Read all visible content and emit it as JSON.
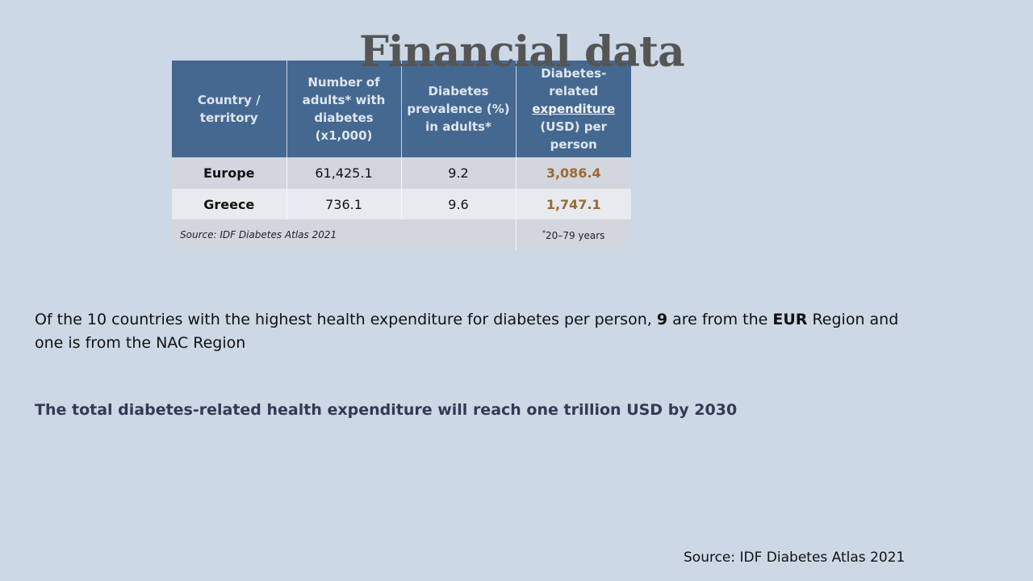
{
  "title": "Financial data",
  "table": {
    "headers": [
      "Country / territory",
      "Number of adults* with diabetes (x1,000)",
      "Diabetes prevalence (%) in adults*",
      {
        "before": "Diabetes-related",
        "underline": "expenditure",
        "after": "(USD) per person"
      }
    ],
    "rows": [
      {
        "country": "Europe",
        "adults": "61,425.1",
        "prevalence": "9.2",
        "expenditure": "3,086.4"
      },
      {
        "country": "Greece",
        "adults": "736.1",
        "prevalence": "9.6",
        "expenditure": "1,747.1"
      }
    ],
    "footer": {
      "source": "Source: IDF Diabetes Atlas 2021",
      "note_mark": "*",
      "note": "20–79 years"
    }
  },
  "paragraph1": {
    "part1": "Of the 10 countries with the highest health expenditure for diabetes per person, ",
    "bold1": "9",
    "part2": " are from the ",
    "bold2": "EUR",
    "part3": " Region and one is from the NAC Region"
  },
  "paragraph2": "The total diabetes-related health expenditure will reach one trillion USD by 2030",
  "source": "Source: IDF Diabetes Atlas 2021",
  "colors": {
    "background": "#ccd8e5",
    "header": "#456890",
    "expenditure_text": "#9b6a34",
    "title": "#555555",
    "emphasis_text": "#333a55"
  }
}
